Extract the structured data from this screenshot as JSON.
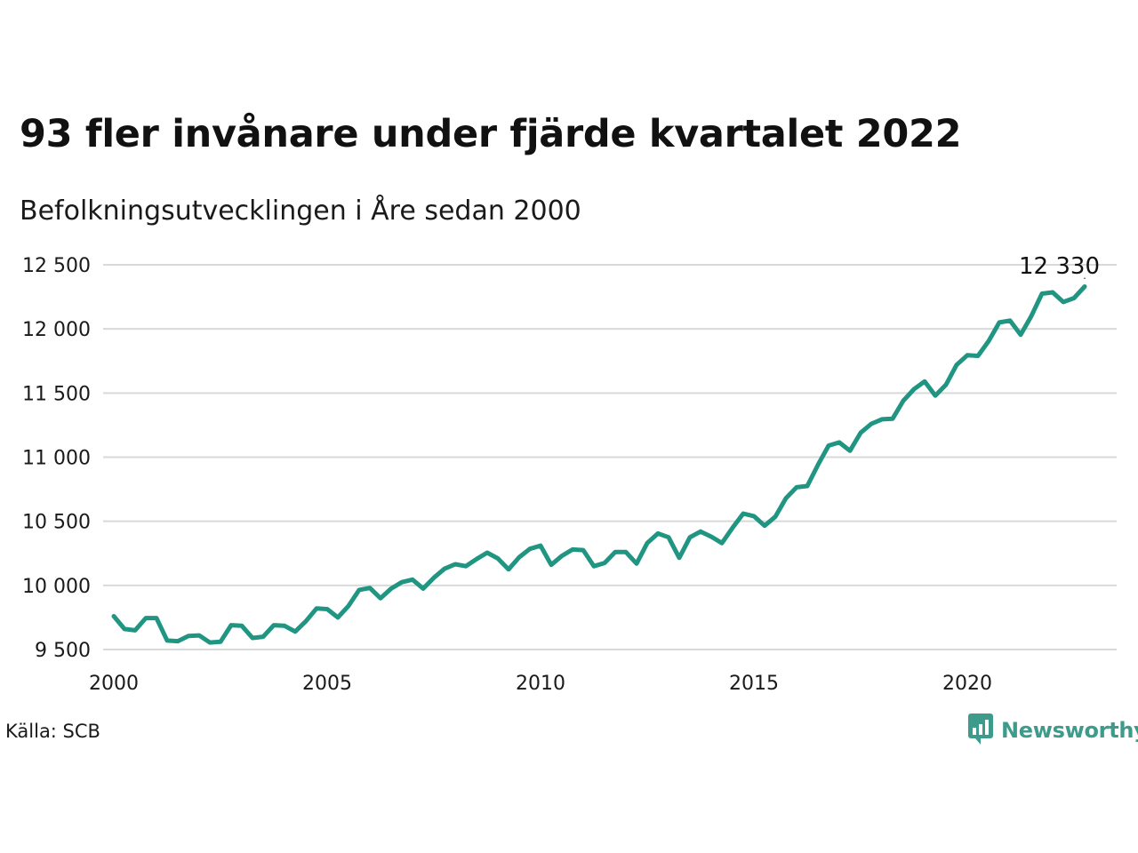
{
  "chart_data": {
    "type": "line",
    "title": "93 fler invånare under fjärde kvartalet 2022",
    "subtitle": "Befolkningsutvecklingen i Åre sedan 2000",
    "source": "Källa: SCB",
    "brand": "Newsworthy",
    "line_color": "#1f9582",
    "grid": true,
    "xlim": [
      2000,
      2024
    ],
    "ylim": [
      9500,
      12500
    ],
    "y_ticks": [
      {
        "value": 9500,
        "label": "9 500"
      },
      {
        "value": 10000,
        "label": "10 000"
      },
      {
        "value": 10500,
        "label": "10 500"
      },
      {
        "value": 11000,
        "label": "11 000"
      },
      {
        "value": 11500,
        "label": "11 500"
      },
      {
        "value": 12000,
        "label": "12 000"
      },
      {
        "value": 12500,
        "label": "12 500"
      }
    ],
    "x_ticks": [
      {
        "value": 2000,
        "label": "2000"
      },
      {
        "value": 2005,
        "label": "2005"
      },
      {
        "value": 2010,
        "label": "2010"
      },
      {
        "value": 2015,
        "label": "2015"
      },
      {
        "value": 2020,
        "label": "2020"
      }
    ],
    "annotation": {
      "x": 2022.75,
      "y": 12330,
      "label": "12 330"
    },
    "x": [
      2000.0,
      2000.25,
      2000.5,
      2000.75,
      2001.0,
      2001.25,
      2001.5,
      2001.75,
      2002.0,
      2002.25,
      2002.5,
      2002.75,
      2003.0,
      2003.25,
      2003.5,
      2003.75,
      2004.0,
      2004.25,
      2004.5,
      2004.75,
      2005.0,
      2005.25,
      2005.5,
      2005.75,
      2006.0,
      2006.25,
      2006.5,
      2006.75,
      2007.0,
      2007.25,
      2007.5,
      2007.75,
      2008.0,
      2008.25,
      2008.5,
      2008.75,
      2009.0,
      2009.25,
      2009.5,
      2009.75,
      2010.0,
      2010.25,
      2010.5,
      2010.75,
      2011.0,
      2011.25,
      2011.5,
      2011.75,
      2012.0,
      2012.25,
      2012.5,
      2012.75,
      2013.0,
      2013.25,
      2013.5,
      2013.75,
      2014.0,
      2014.25,
      2014.5,
      2014.75,
      2015.0,
      2015.25,
      2015.5,
      2015.75,
      2016.0,
      2016.25,
      2016.5,
      2016.75,
      2017.0,
      2017.25,
      2017.5,
      2017.75,
      2018.0,
      2018.25,
      2018.5,
      2018.75,
      2019.0,
      2019.25,
      2019.5,
      2019.75,
      2020.0,
      2020.25,
      2020.5,
      2020.75,
      2021.0,
      2021.25,
      2021.5,
      2021.75,
      2022.0,
      2022.25,
      2022.5,
      2022.75
    ],
    "series": [
      {
        "values": [
          9760,
          9660,
          9650,
          9745,
          9745,
          9570,
          9565,
          9605,
          9610,
          9555,
          9560,
          9690,
          9685,
          9590,
          9600,
          9690,
          9685,
          9640,
          9720,
          9820,
          9815,
          9750,
          9840,
          9965,
          9980,
          9900,
          9975,
          10025,
          10045,
          9975,
          10060,
          10130,
          10165,
          10150,
          10205,
          10255,
          10210,
          10125,
          10220,
          10285,
          10310,
          10160,
          10230,
          10280,
          10275,
          10150,
          10175,
          10260,
          10260,
          10170,
          10330,
          10405,
          10375,
          10215,
          10375,
          10420,
          10380,
          10330,
          10450,
          10560,
          10540,
          10465,
          10535,
          10680,
          10765,
          10775,
          10940,
          11090,
          11115,
          11050,
          11190,
          11260,
          11295,
          11300,
          11440,
          11530,
          11590,
          11480,
          11565,
          11720,
          11795,
          11790,
          11905,
          12050,
          12065,
          11955,
          12100,
          12275,
          12285,
          12210,
          12240,
          12330
        ]
      }
    ]
  }
}
